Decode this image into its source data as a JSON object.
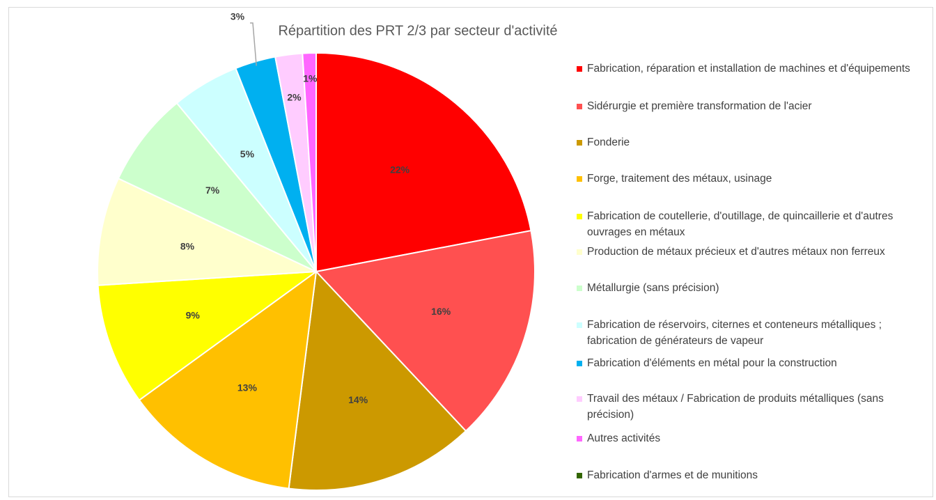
{
  "chart_data": {
    "type": "pie",
    "title": "Répartition des PRT 2/3 par secteur d'activité",
    "categories": [
      "Fabrication, réparation et installation de machines et d'équipements",
      "Sidérurgie et première transformation de l'acier",
      "Fonderie",
      "Forge, traitement des métaux, usinage",
      "Fabrication de coutellerie, d'outillage, de quincaillerie et d'autres ouvrages en métaux",
      "Production de métaux précieux et d'autres métaux non ferreux",
      "Métallurgie (sans précision)",
      "Fabrication de réservoirs, citernes et conteneurs métalliques ; fabrication de générateurs de vapeur",
      "Fabrication d'éléments en métal pour la construction",
      "Travail des métaux / Fabrication de produits métalliques (sans précision)",
      "Autres activités",
      "Fabrication d'armes et de munitions"
    ],
    "values": [
      22,
      16,
      14,
      13,
      9,
      8,
      7,
      5,
      3,
      2,
      1,
      0
    ],
    "value_labels": [
      "22%",
      "16%",
      "14%",
      "13%",
      "9%",
      "8%",
      "7%",
      "5%",
      "3%",
      "2%",
      "1%",
      null
    ],
    "colors": [
      "#ff0000",
      "#ff5050",
      "#cc9900",
      "#ffc000",
      "#ffff00",
      "#ffffcc",
      "#ccffcc",
      "#ccffff",
      "#00b0f0",
      "#ffccff",
      "#ff66ff",
      "#336600"
    ],
    "legend": "right"
  }
}
